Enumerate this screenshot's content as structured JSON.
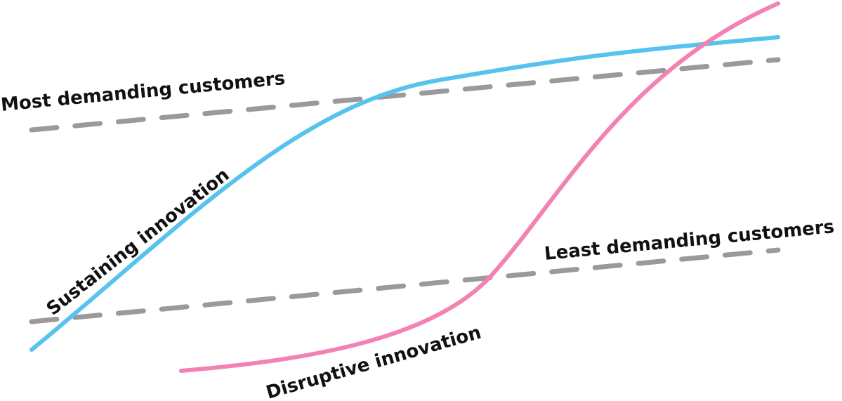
{
  "labels": {
    "most_demanding": "Most demanding customers",
    "least_demanding": "Least demanding customers",
    "sustaining": "Sustaining innovation",
    "disruptive": "Disruptive innovation"
  }
}
